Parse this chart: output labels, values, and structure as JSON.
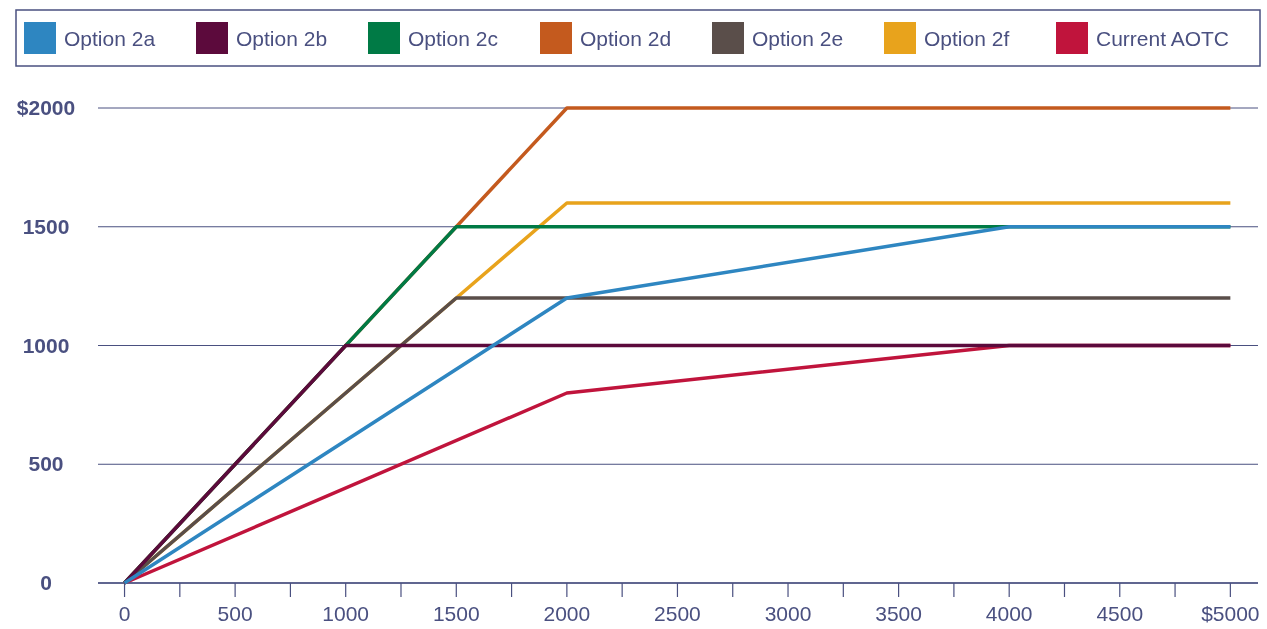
{
  "chart_data": {
    "type": "line",
    "legend": "top",
    "grid": "y",
    "marker": "none",
    "line_style": "solid",
    "xlim": [
      -120,
      5125
    ],
    "ylim": [
      0,
      2000
    ],
    "xticks": [
      0,
      {
        "value": 250,
        "label": null
      },
      500,
      {
        "value": 750,
        "label": null
      },
      1000,
      {
        "value": 1250,
        "label": null
      },
      1500,
      {
        "value": 1750,
        "label": null
      },
      2000,
      {
        "value": 2250,
        "label": null
      },
      2500,
      {
        "value": 2750,
        "label": null
      },
      3000,
      {
        "value": 3250,
        "label": null
      },
      3500,
      {
        "value": 3750,
        "label": null
      },
      4000,
      {
        "value": 4250,
        "label": null
      },
      4500,
      {
        "value": 4750,
        "label": null
      },
      {
        "value": 5000,
        "label": "$5000"
      }
    ],
    "yticks": [
      0,
      500,
      1000,
      1500,
      {
        "value": 2000,
        "label": "$2000"
      }
    ],
    "series": [
      {
        "name": "Option 2a",
        "color": "#2e86c1",
        "x": [
          0,
          2000,
          4000,
          5000
        ],
        "values": [
          0,
          1200,
          1500,
          1500
        ]
      },
      {
        "name": "Option 2b",
        "color": "#5c0a3c",
        "x": [
          0,
          1000,
          5000
        ],
        "values": [
          0,
          1000,
          1000
        ]
      },
      {
        "name": "Option 2c",
        "color": "#007a45",
        "x": [
          0,
          1500,
          5000
        ],
        "values": [
          0,
          1500,
          1500
        ]
      },
      {
        "name": "Option 2d",
        "color": "#c45a1e",
        "x": [
          0,
          2000,
          5000
        ],
        "values": [
          0,
          2000,
          2000
        ]
      },
      {
        "name": "Option 2e",
        "color": "#5a4e4a",
        "x": [
          0,
          1500,
          5000
        ],
        "values": [
          0,
          1200,
          1200
        ]
      },
      {
        "name": "Option 2f",
        "color": "#e8a31c",
        "x": [
          0,
          1500,
          2000,
          5000
        ],
        "values": [
          0,
          1200,
          1600,
          1600
        ]
      },
      {
        "name": "Current AOTC",
        "color": "#c0143c",
        "x": [
          0,
          2000,
          4000,
          5000
        ],
        "values": [
          0,
          800,
          1000,
          1000
        ]
      }
    ]
  }
}
